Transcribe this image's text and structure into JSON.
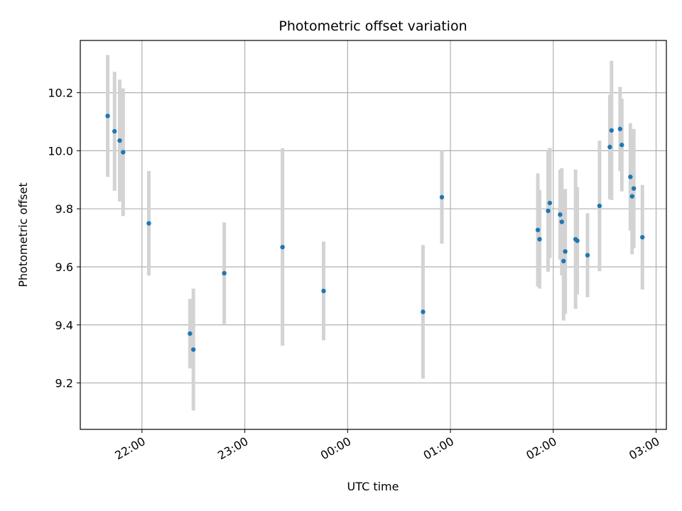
{
  "chart_data": {
    "type": "scatter",
    "title": "Photometric offset variation",
    "xlabel": "UTC time",
    "ylabel": "Photometric offset",
    "x_axis_kind": "time",
    "xlim": [
      "21:24",
      "03:06"
    ],
    "ylim": [
      9.04,
      10.38
    ],
    "grid": true,
    "x_ticks": [
      "22:00",
      "23:00",
      "00:00",
      "01:00",
      "02:00",
      "03:00"
    ],
    "y_ticks": [
      9.2,
      9.4,
      9.6,
      9.8,
      10.0,
      10.2
    ],
    "marker_color": "#1f77b4",
    "errorbar_color": "#d3d3d3",
    "series": [
      {
        "points": [
          {
            "x": "21:40",
            "y": 10.12,
            "err": 0.21
          },
          {
            "x": "21:44",
            "y": 10.067,
            "err": 0.205
          },
          {
            "x": "21:47",
            "y": 10.035,
            "err": 0.21
          },
          {
            "x": "21:49",
            "y": 9.995,
            "err": 0.22
          },
          {
            "x": "22:04",
            "y": 9.75,
            "err": 0.18
          },
          {
            "x": "22:28",
            "y": 9.37,
            "err": 0.12
          },
          {
            "x": "22:30",
            "y": 9.315,
            "err": 0.21
          },
          {
            "x": "22:48",
            "y": 9.578,
            "err": 0.175
          },
          {
            "x": "23:22",
            "y": 9.668,
            "err": 0.34
          },
          {
            "x": "23:46",
            "y": 9.517,
            "err": 0.17
          },
          {
            "x": "00:44",
            "y": 9.445,
            "err": 0.23
          },
          {
            "x": "00:55",
            "y": 9.84,
            "err": 0.16
          },
          {
            "x": "01:51",
            "y": 9.727,
            "err": 0.195
          },
          {
            "x": "01:52",
            "y": 9.695,
            "err": 0.17
          },
          {
            "x": "01:57",
            "y": 9.793,
            "err": 0.21
          },
          {
            "x": "01:58",
            "y": 9.82,
            "err": 0.19
          },
          {
            "x": "02:04",
            "y": 9.78,
            "err": 0.155
          },
          {
            "x": "02:05",
            "y": 9.755,
            "err": 0.185
          },
          {
            "x": "02:06",
            "y": 9.62,
            "err": 0.205
          },
          {
            "x": "02:07",
            "y": 9.653,
            "err": 0.215
          },
          {
            "x": "02:13",
            "y": 9.695,
            "err": 0.24
          },
          {
            "x": "02:14",
            "y": 9.69,
            "err": 0.185
          },
          {
            "x": "02:20",
            "y": 9.64,
            "err": 0.145
          },
          {
            "x": "02:27",
            "y": 9.81,
            "err": 0.225
          },
          {
            "x": "02:33",
            "y": 10.013,
            "err": 0.18
          },
          {
            "x": "02:34",
            "y": 10.07,
            "err": 0.24
          },
          {
            "x": "02:39",
            "y": 10.075,
            "err": 0.145
          },
          {
            "x": "02:40",
            "y": 10.02,
            "err": 0.16
          },
          {
            "x": "02:45",
            "y": 9.91,
            "err": 0.185
          },
          {
            "x": "02:46",
            "y": 9.843,
            "err": 0.2
          },
          {
            "x": "02:47",
            "y": 9.87,
            "err": 0.205
          },
          {
            "x": "02:52",
            "y": 9.702,
            "err": 0.18
          }
        ]
      }
    ]
  }
}
